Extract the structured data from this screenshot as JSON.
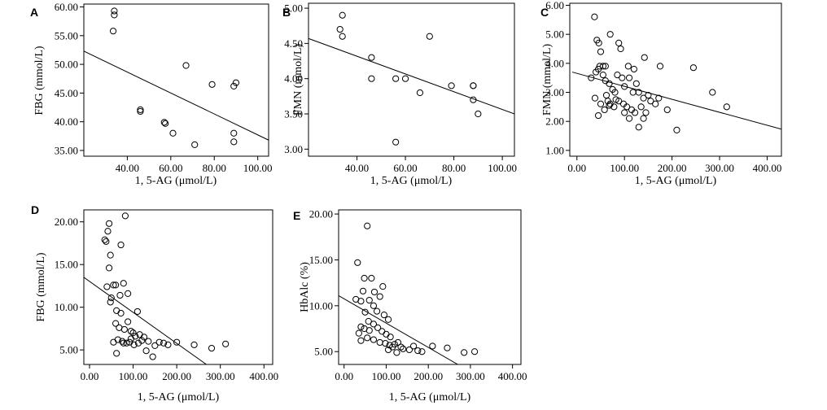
{
  "chart_data": [
    {
      "panel": "A",
      "type": "scatter",
      "xlabel": "1, 5-AG (μmol/L)",
      "ylabel": "FBG (mmol/L)",
      "x_ticks": [
        "40.00",
        "60.00",
        "80.00",
        "100.00"
      ],
      "y_ticks": [
        "35.00",
        "40.00",
        "45.00",
        "50.00",
        "55.00",
        "60.00"
      ],
      "xlim": [
        20,
        105
      ],
      "ylim": [
        34,
        60.5
      ],
      "points": [
        [
          34,
          59.3
        ],
        [
          34,
          58.6
        ],
        [
          33.5,
          55.8
        ],
        [
          46,
          42.1
        ],
        [
          46,
          41.8
        ],
        [
          57,
          39.9
        ],
        [
          57.5,
          39.7
        ],
        [
          61,
          38
        ],
        [
          67,
          49.8
        ],
        [
          71,
          36
        ],
        [
          79,
          46.5
        ],
        [
          89,
          46.2
        ],
        [
          90,
          46.8
        ],
        [
          89,
          38
        ],
        [
          89,
          36.5
        ]
      ],
      "fit_line": [
        [
          20,
          52.3
        ],
        [
          105,
          36.8
        ]
      ]
    },
    {
      "panel": "B",
      "type": "scatter",
      "xlabel": "1, 5-AG (μmol/L)",
      "ylabel": "FMN (mmol/L)",
      "x_ticks": [
        "40.00",
        "60.00",
        "80.00",
        "100.00"
      ],
      "y_ticks": [
        "3.00",
        "3.50",
        "4.00",
        "4.50",
        "5.00"
      ],
      "xlim": [
        20,
        105
      ],
      "ylim": [
        2.9,
        5.07
      ],
      "points": [
        [
          34,
          4.9
        ],
        [
          33,
          4.7
        ],
        [
          34,
          4.6
        ],
        [
          46,
          4.3
        ],
        [
          46,
          4.0
        ],
        [
          56,
          4.0
        ],
        [
          60,
          4.0
        ],
        [
          56,
          3.1
        ],
        [
          66,
          3.8
        ],
        [
          70,
          4.6
        ],
        [
          79,
          3.9
        ],
        [
          88,
          3.9
        ],
        [
          88,
          3.9
        ],
        [
          88,
          3.7
        ],
        [
          90,
          3.5
        ]
      ],
      "fit_line": [
        [
          20,
          4.57
        ],
        [
          105,
          3.5
        ]
      ]
    },
    {
      "panel": "C",
      "type": "scatter",
      "xlabel": "1, 5-AG (μmol/L)",
      "ylabel": "FMN (mmol/L)",
      "x_ticks": [
        "0.00",
        "100.00",
        "200.00",
        "300.00",
        "400.00"
      ],
      "y_ticks": [
        "1.00",
        "2.00",
        "3.00",
        "4.00",
        "5.00",
        "6.00"
      ],
      "xlim": [
        -15,
        430
      ],
      "ylim": [
        0.8,
        6.07
      ],
      "points": [
        [
          37,
          5.6
        ],
        [
          42,
          4.8
        ],
        [
          46,
          4.7
        ],
        [
          50,
          4.4
        ],
        [
          45,
          3.8
        ],
        [
          48,
          3.9
        ],
        [
          55,
          3.9
        ],
        [
          60,
          3.9
        ],
        [
          70,
          5.0
        ],
        [
          88,
          4.7
        ],
        [
          92,
          4.5
        ],
        [
          108,
          3.9
        ],
        [
          120,
          3.8
        ],
        [
          142,
          4.2
        ],
        [
          175,
          3.9
        ],
        [
          245,
          3.85
        ],
        [
          30,
          3.5
        ],
        [
          40,
          3.7
        ],
        [
          55,
          3.6
        ],
        [
          60,
          3.4
        ],
        [
          68,
          3.3
        ],
        [
          75,
          3.1
        ],
        [
          80,
          3.0
        ],
        [
          85,
          3.6
        ],
        [
          95,
          3.5
        ],
        [
          100,
          3.2
        ],
        [
          110,
          3.5
        ],
        [
          118,
          3.0
        ],
        [
          125,
          3.3
        ],
        [
          130,
          3.0
        ],
        [
          140,
          2.8
        ],
        [
          150,
          2.9
        ],
        [
          62,
          2.9
        ],
        [
          65,
          2.7
        ],
        [
          70,
          2.6
        ],
        [
          78,
          2.5
        ],
        [
          88,
          2.7
        ],
        [
          98,
          2.6
        ],
        [
          105,
          2.5
        ],
        [
          115,
          2.4
        ],
        [
          122,
          2.3
        ],
        [
          135,
          2.5
        ],
        [
          145,
          2.3
        ],
        [
          155,
          2.7
        ],
        [
          165,
          2.6
        ],
        [
          172,
          2.8
        ],
        [
          190,
          2.4
        ],
        [
          38,
          2.8
        ],
        [
          50,
          2.6
        ],
        [
          45,
          2.2
        ],
        [
          58,
          2.4
        ],
        [
          100,
          2.3
        ],
        [
          110,
          2.1
        ],
        [
          140,
          2.1
        ],
        [
          130,
          1.8
        ],
        [
          210,
          1.7
        ],
        [
          285,
          3.0
        ],
        [
          315,
          2.5
        ],
        [
          68,
          2.55
        ],
        [
          82,
          2.75
        ]
      ],
      "fit_line": [
        [
          -10,
          3.7
        ],
        [
          430,
          1.73
        ]
      ]
    },
    {
      "panel": "D",
      "type": "scatter",
      "xlabel": "1, 5-AG (μmol/L)",
      "ylabel": "FBG (mmol/L)",
      "x_ticks": [
        "0.00",
        "100.00",
        "200.00",
        "300.00",
        "400.00"
      ],
      "y_ticks": [
        "5.00",
        "10.00",
        "15.00",
        "20.00"
      ],
      "xlim": [
        -13,
        420
      ],
      "ylim": [
        3.3,
        21.4
      ],
      "points": [
        [
          82,
          20.7
        ],
        [
          45,
          19.8
        ],
        [
          42,
          18.9
        ],
        [
          35,
          17.9
        ],
        [
          38,
          17.7
        ],
        [
          72,
          17.3
        ],
        [
          48,
          16.1
        ],
        [
          45,
          14.6
        ],
        [
          40,
          12.4
        ],
        [
          78,
          12.8
        ],
        [
          55,
          12.6
        ],
        [
          60,
          12.6
        ],
        [
          50,
          11.1
        ],
        [
          70,
          11.4
        ],
        [
          88,
          11.6
        ],
        [
          48,
          10.6
        ],
        [
          62,
          9.6
        ],
        [
          72,
          9.3
        ],
        [
          110,
          9.5
        ],
        [
          60,
          8.1
        ],
        [
          88,
          8.3
        ],
        [
          68,
          7.6
        ],
        [
          80,
          7.4
        ],
        [
          95,
          7.2
        ],
        [
          100,
          7.0
        ],
        [
          115,
          6.8
        ],
        [
          125,
          6.5
        ],
        [
          65,
          6.2
        ],
        [
          75,
          6.0
        ],
        [
          85,
          5.8
        ],
        [
          92,
          5.9
        ],
        [
          102,
          5.6
        ],
        [
          112,
          5.8
        ],
        [
          120,
          6.1
        ],
        [
          135,
          6.0
        ],
        [
          150,
          5.5
        ],
        [
          160,
          5.9
        ],
        [
          170,
          5.8
        ],
        [
          180,
          5.6
        ],
        [
          200,
          5.9
        ],
        [
          240,
          5.6
        ],
        [
          280,
          5.2
        ],
        [
          312,
          5.7
        ],
        [
          55,
          5.9
        ],
        [
          62,
          4.6
        ],
        [
          78,
          5.8
        ],
        [
          130,
          4.9
        ],
        [
          145,
          4.2
        ],
        [
          95,
          6.3
        ],
        [
          105,
          6.6
        ]
      ],
      "fit_line": [
        [
          -13,
          13.5
        ],
        [
          268,
          3.3
        ]
      ]
    },
    {
      "panel": "E",
      "type": "scatter",
      "xlabel": "1, 5-AG (μmol/L)",
      "ylabel": "HbAlc (%)",
      "x_ticks": [
        "0.00",
        "100.00",
        "200.00",
        "300.00",
        "400.00"
      ],
      "y_ticks": [
        "5.00",
        "10.00",
        "15.00",
        "20.00"
      ],
      "xlim": [
        -13,
        420
      ],
      "ylim": [
        3.6,
        20.45
      ],
      "points": [
        [
          55,
          18.7
        ],
        [
          32,
          14.7
        ],
        [
          48,
          13.0
        ],
        [
          65,
          13.0
        ],
        [
          92,
          12.1
        ],
        [
          45,
          11.6
        ],
        [
          72,
          11.5
        ],
        [
          85,
          11.0
        ],
        [
          28,
          10.7
        ],
        [
          40,
          10.5
        ],
        [
          60,
          10.6
        ],
        [
          70,
          10.0
        ],
        [
          50,
          9.3
        ],
        [
          78,
          9.4
        ],
        [
          95,
          9.0
        ],
        [
          105,
          8.5
        ],
        [
          58,
          8.3
        ],
        [
          70,
          8.0
        ],
        [
          40,
          7.7
        ],
        [
          48,
          7.5
        ],
        [
          60,
          7.3
        ],
        [
          35,
          7.0
        ],
        [
          80,
          7.6
        ],
        [
          90,
          7.2
        ],
        [
          100,
          6.9
        ],
        [
          110,
          6.6
        ],
        [
          55,
          6.5
        ],
        [
          70,
          6.3
        ],
        [
          85,
          6.0
        ],
        [
          98,
          5.9
        ],
        [
          108,
          5.7
        ],
        [
          115,
          5.5
        ],
        [
          120,
          5.8
        ],
        [
          128,
          6.0
        ],
        [
          135,
          5.5
        ],
        [
          140,
          5.3
        ],
        [
          155,
          5.2
        ],
        [
          165,
          5.6
        ],
        [
          175,
          5.1
        ],
        [
          185,
          5.0
        ],
        [
          210,
          5.6
        ],
        [
          245,
          5.4
        ],
        [
          285,
          4.9
        ],
        [
          310,
          5.0
        ],
        [
          40,
          6.2
        ],
        [
          105,
          5.2
        ],
        [
          125,
          4.9
        ]
      ],
      "fit_line": [
        [
          -13,
          11.1
        ],
        [
          270,
          3.6
        ]
      ]
    }
  ]
}
